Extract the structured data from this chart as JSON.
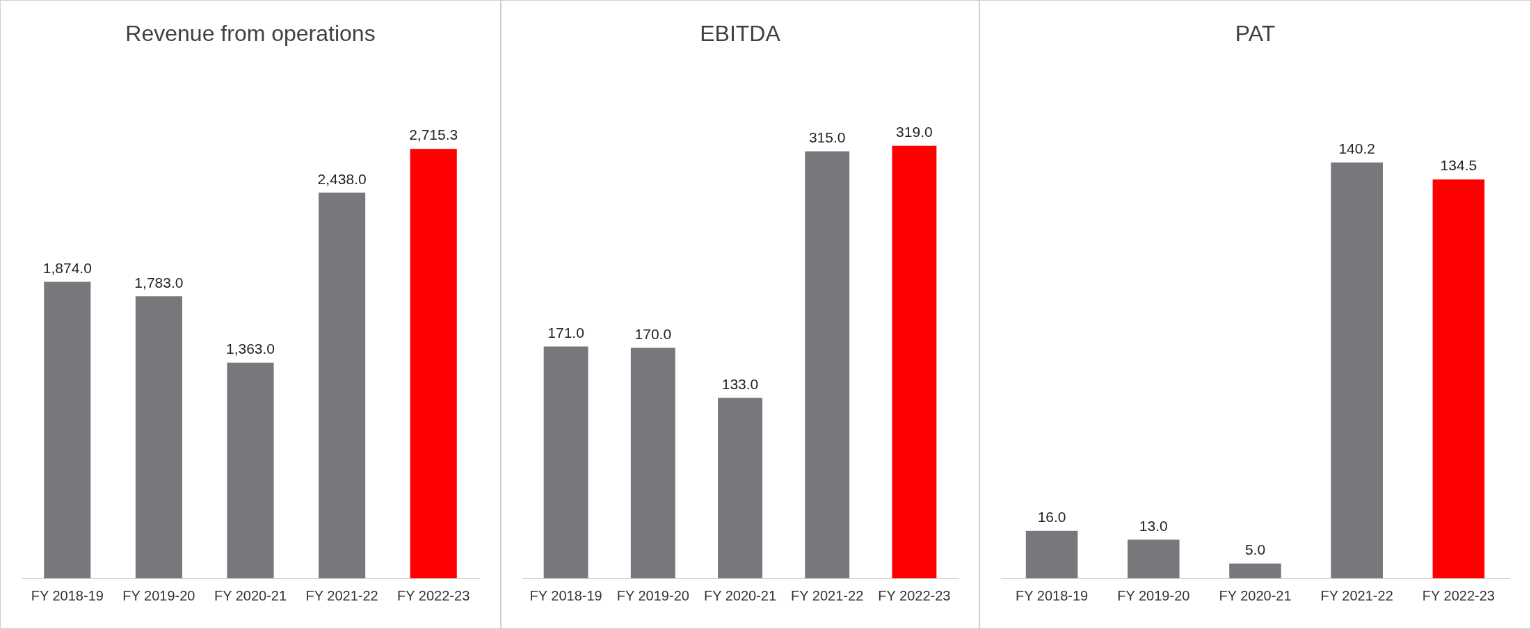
{
  "chart_data": [
    {
      "type": "bar",
      "title": "Revenue from operations",
      "categories": [
        "FY 2018-19",
        "FY 2019-20",
        "FY 2020-21",
        "FY 2021-22",
        "FY 2022-23"
      ],
      "values": [
        1874.0,
        1783.0,
        1363.0,
        2438.0,
        2715.3
      ],
      "value_labels": [
        "1,874.0",
        "1,783.0",
        "1,363.0",
        "2,438.0",
        "2,715.3"
      ],
      "colors": [
        "#77787b",
        "#77787b",
        "#77787b",
        "#77787b",
        "#ff0000"
      ],
      "grid": false,
      "legend": false,
      "tick_labels": "x"
    },
    {
      "type": "bar",
      "title": "EBITDA",
      "categories": [
        "FY 2018-19",
        "FY 2019-20",
        "FY 2020-21",
        "FY 2021-22",
        "FY 2022-23"
      ],
      "values": [
        171.0,
        170.0,
        133.0,
        315.0,
        319.0
      ],
      "value_labels": [
        "171.0",
        "170.0",
        "133.0",
        "315.0",
        "319.0"
      ],
      "colors": [
        "#77787b",
        "#77787b",
        "#77787b",
        "#77787b",
        "#ff0000"
      ],
      "grid": false,
      "legend": false,
      "tick_labels": "x"
    },
    {
      "type": "bar",
      "title": "PAT",
      "categories": [
        "FY 2018-19",
        "FY 2019-20",
        "FY 2020-21",
        "FY 2021-22",
        "FY 2022-23"
      ],
      "values": [
        16.0,
        13.0,
        5.0,
        140.2,
        134.5
      ],
      "value_labels": [
        "16.0",
        "13.0",
        "5.0",
        "140.2",
        "134.5"
      ],
      "colors": [
        "#77787b",
        "#77787b",
        "#77787b",
        "#77787b",
        "#ff0000"
      ],
      "grid": false,
      "legend": false,
      "tick_labels": "x"
    }
  ]
}
